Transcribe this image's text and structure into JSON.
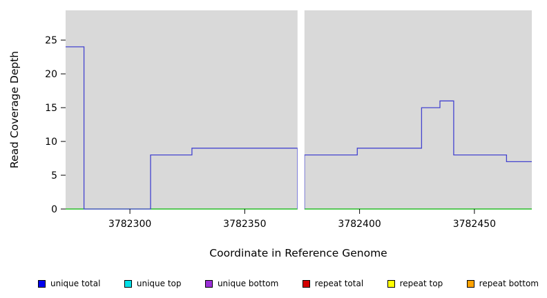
{
  "chart_data": {
    "type": "line",
    "title": "",
    "xlabel": "Coordinate in Reference Genome",
    "ylabel": "Read Coverage Depth",
    "xlim": [
      3782272,
      3782475
    ],
    "ylim": [
      0,
      29.4
    ],
    "x_ticks": [
      3782300,
      3782350,
      3782400,
      3782450
    ],
    "y_ticks": [
      0,
      5,
      10,
      15,
      20,
      25
    ],
    "grid": false,
    "legend_position": "bottom",
    "plot_background": "#d9d9d9",
    "gap": {
      "x_start": 3782373,
      "x_end": 3782376
    },
    "series": [
      {
        "name": "zero baseline",
        "color": "#00b400",
        "segments": [
          [
            [
              3782272,
              0
            ],
            [
              3782373,
              0
            ]
          ],
          [
            [
              3782376,
              0
            ],
            [
              3782475,
              0
            ]
          ]
        ]
      },
      {
        "name": "unique total coverage step",
        "color": "#4343cf",
        "segments": [
          [
            [
              3782272,
              24
            ],
            [
              3782280,
              24
            ],
            [
              3782280,
              0
            ],
            [
              3782309,
              0
            ],
            [
              3782309,
              8
            ],
            [
              3782327,
              8
            ],
            [
              3782327,
              9
            ],
            [
              3782373,
              9
            ],
            [
              3782373,
              0
            ]
          ],
          [
            [
              3782376,
              0
            ],
            [
              3782376,
              8
            ],
            [
              3782399,
              8
            ],
            [
              3782399,
              9
            ],
            [
              3782427,
              9
            ],
            [
              3782427,
              15
            ],
            [
              3782435,
              15
            ],
            [
              3782435,
              16
            ],
            [
              3782441,
              16
            ],
            [
              3782441,
              8
            ],
            [
              3782464,
              8
            ],
            [
              3782464,
              7
            ],
            [
              3782475,
              7
            ]
          ]
        ]
      }
    ],
    "legend": [
      {
        "label": "unique total",
        "color": "#0000ee"
      },
      {
        "label": "unique top",
        "color": "#00e0e8"
      },
      {
        "label": "unique bottom",
        "color": "#9b30d8"
      },
      {
        "label": "repeat total",
        "color": "#d40000"
      },
      {
        "label": "repeat top",
        "color": "#ffff00"
      },
      {
        "label": "repeat bottom",
        "color": "#ffa200"
      }
    ]
  }
}
